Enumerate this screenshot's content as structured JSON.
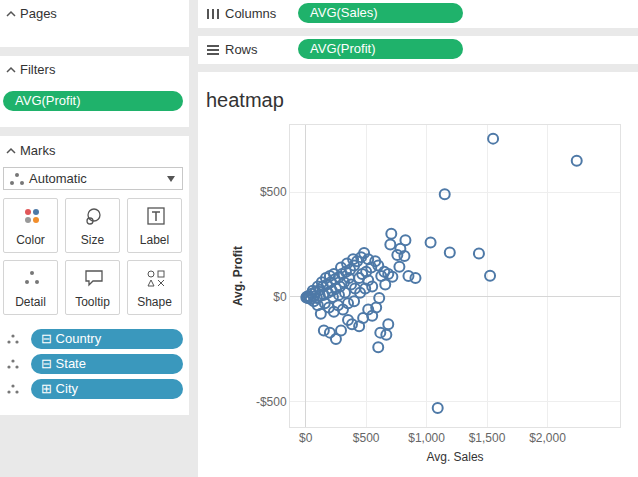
{
  "shelves": {
    "columns": {
      "label": "Columns",
      "pill": "AVG(Sales)"
    },
    "rows": {
      "label": "Rows",
      "pill": "AVG(Profit)"
    }
  },
  "sidebar": {
    "pages": {
      "title": "Pages"
    },
    "filters": {
      "title": "Filters",
      "pills": [
        "AVG(Profit)"
      ]
    },
    "marks": {
      "title": "Marks",
      "mark_type": "Automatic",
      "buttons": [
        "Color",
        "Size",
        "Label",
        "Detail",
        "Tooltip",
        "Shape"
      ],
      "fields": [
        {
          "toggle": "⊟",
          "name": "Country"
        },
        {
          "toggle": "⊟",
          "name": "State"
        },
        {
          "toggle": "⊞",
          "name": "City"
        }
      ]
    }
  },
  "chart_data": {
    "type": "scatter",
    "title": "heatmap",
    "x_label": "Avg. Sales",
    "y_label": "Avg. Profit",
    "color": "#4e79a7",
    "marker": "circle-open",
    "grid": true,
    "x": [
      2242,
      1550,
      1150,
      1433,
      1525,
      1033,
      1092,
      1192,
      708,
      700,
      783,
      825,
      758,
      817,
      775,
      850,
      717,
      650,
      683,
      600,
      625,
      658,
      575,
      542,
      500,
      467,
      442,
      517,
      550,
      608,
      583,
      617,
      600,
      667,
      683,
      550,
      517,
      475,
      442,
      383,
      350,
      292,
      200,
      150,
      250,
      308,
      267,
      233,
      192,
      158,
      125,
      100,
      67,
      42,
      17,
      25,
      50,
      83,
      117,
      142,
      175,
      208,
      242,
      275,
      300,
      333,
      367,
      400,
      425,
      458,
      483,
      517,
      358,
      317,
      283,
      250,
      217,
      183,
      150,
      117,
      92,
      67,
      33,
      10,
      5,
      58,
      100,
      133,
      167,
      200,
      233,
      292,
      342,
      392,
      375,
      408,
      325,
      275,
      225,
      350,
      400,
      450,
      492,
      908
    ],
    "values": [
      649,
      755,
      490,
      207,
      101,
      260,
      -529,
      212,
      301,
      250,
      230,
      271,
      200,
      195,
      144,
      100,
      96,
      120,
      110,
      150,
      100,
      60,
      170,
      140,
      120,
      110,
      90,
      80,
      50,
      -5,
      -50,
      -170,
      -240,
      -180,
      -130,
      -90,
      -60,
      -100,
      -140,
      -130,
      -110,
      -160,
      -170,
      -160,
      -200,
      -60,
      -40,
      -70,
      -50,
      -30,
      -80,
      -40,
      -20,
      -10,
      -5,
      5,
      15,
      25,
      35,
      50,
      60,
      70,
      85,
      95,
      110,
      120,
      130,
      150,
      170,
      190,
      210,
      180,
      90,
      70,
      50,
      40,
      30,
      20,
      10,
      5,
      -5,
      2,
      -2,
      1,
      -3,
      30,
      50,
      70,
      90,
      100,
      110,
      140,
      160,
      180,
      60,
      40,
      20,
      10,
      0,
      -30,
      -20,
      20,
      40,
      91
    ],
    "xlim": [
      -130,
      2600
    ],
    "ylim": [
      -620,
      820
    ],
    "xticks": [
      {
        "value": 0,
        "label": "$0"
      },
      {
        "value": 500,
        "label": "$500"
      },
      {
        "value": 1000,
        "label": "$1,000"
      },
      {
        "value": 1500,
        "label": "$1,500"
      },
      {
        "value": 2000,
        "label": "$2,000"
      }
    ],
    "yticks": [
      {
        "value": -500,
        "label": "-$500"
      },
      {
        "value": 0,
        "label": "$0"
      },
      {
        "value": 500,
        "label": "$500"
      }
    ]
  }
}
